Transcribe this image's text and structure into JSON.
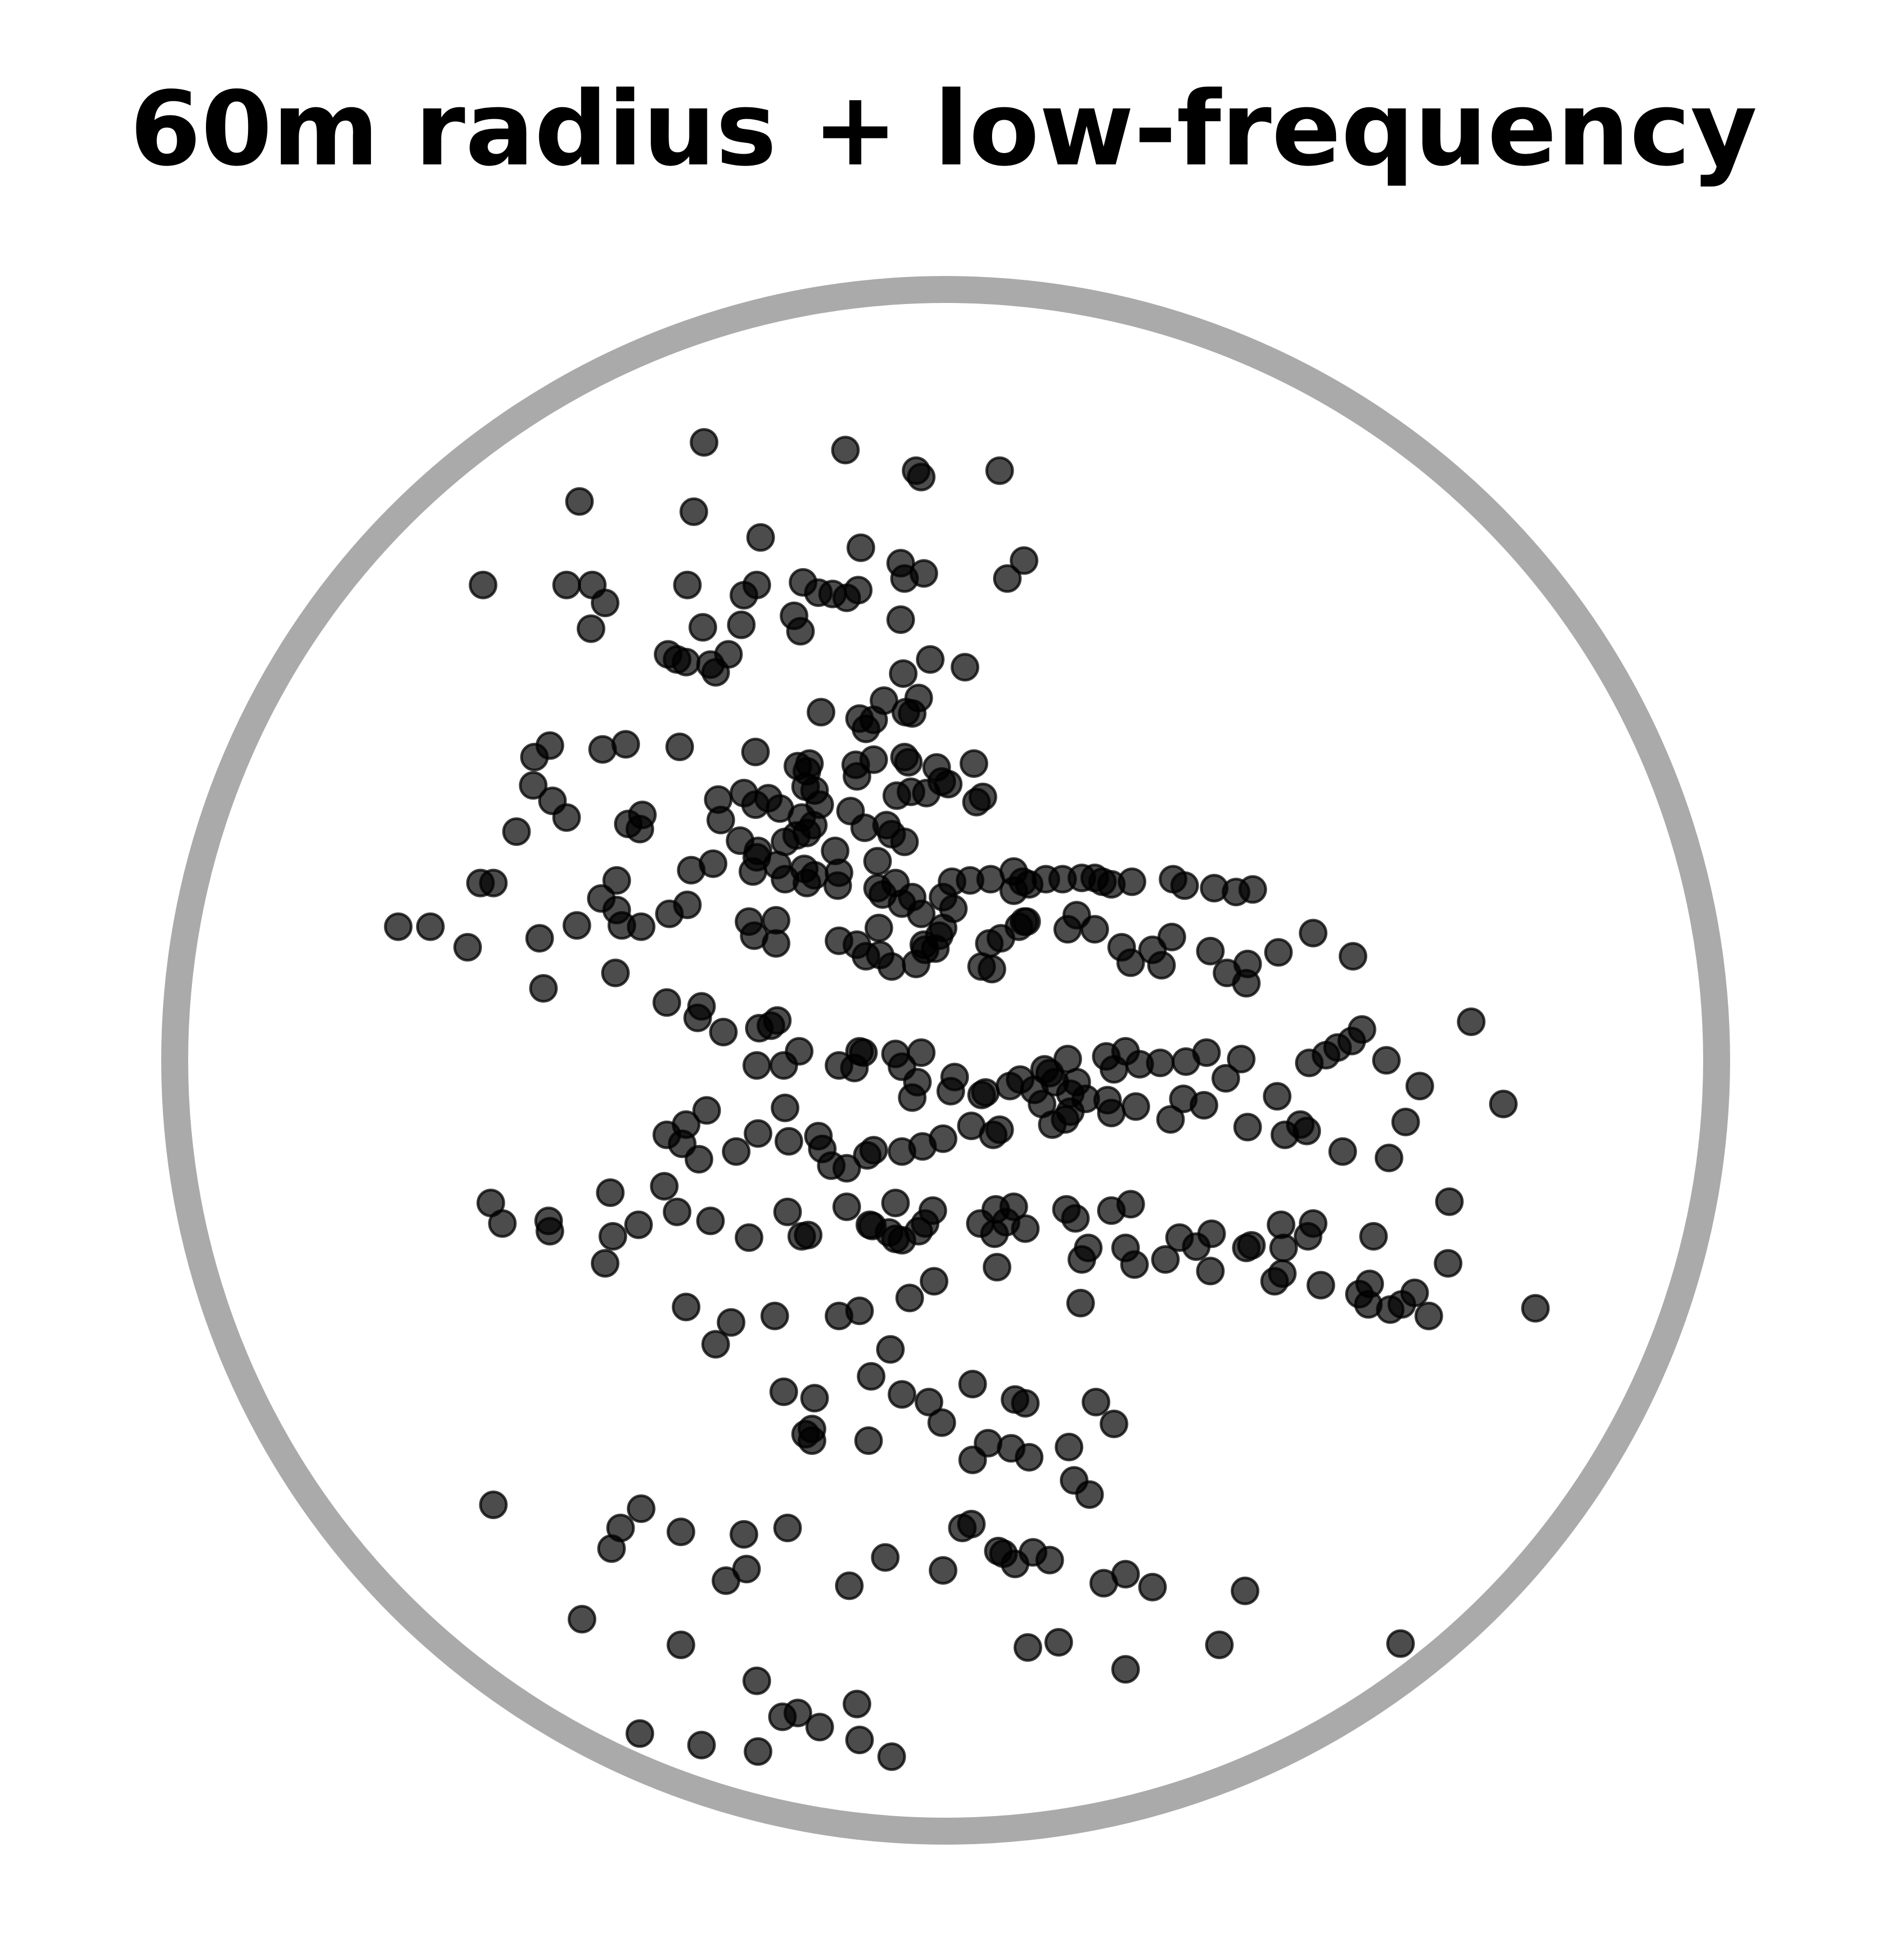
{
  "chart_data": {
    "type": "scatter",
    "title": "60m radius + low-frequency",
    "xlabel": "",
    "ylabel": "",
    "grid": false,
    "legend": "none",
    "unit": "m",
    "radius": 60,
    "xlim": [
      -60,
      60
    ],
    "ylim": [
      -60,
      60
    ],
    "colors": {
      "points": "#000000",
      "boundary": "#aaaaaa",
      "background": "#ffffff"
    },
    "points": [
      [
        -18.8,
        48.1
      ],
      [
        -7.8,
        47.5
      ],
      [
        -2.3,
        45.9
      ],
      [
        -1.9,
        45.4
      ],
      [
        4.2,
        45.9
      ],
      [
        -28.5,
        43.5
      ],
      [
        -19.6,
        42.7
      ],
      [
        -14.4,
        40.7
      ],
      [
        -6.6,
        39.9
      ],
      [
        6.1,
        38.9
      ],
      [
        -3.5,
        38.7
      ],
      [
        -3.2,
        37.5
      ],
      [
        -1.7,
        37.9
      ],
      [
        4.8,
        37.5
      ],
      [
        -29.5,
        37.0
      ],
      [
        -27.5,
        37.0
      ],
      [
        -20.1,
        37.0
      ],
      [
        -9.9,
        36.4
      ],
      [
        -14.7,
        37.0
      ],
      [
        -11.1,
        37.2
      ],
      [
        -8.8,
        36.3
      ],
      [
        -36.0,
        37.0
      ],
      [
        -26.5,
        35.6
      ],
      [
        -15.7,
        36.2
      ],
      [
        -7.7,
        36.0
      ],
      [
        -6.8,
        36.6
      ],
      [
        -11.8,
        34.6
      ],
      [
        -3.5,
        34.3
      ],
      [
        -15.9,
        33.9
      ],
      [
        -18.9,
        33.7
      ],
      [
        -27.6,
        33.6
      ],
      [
        -11.3,
        33.4
      ],
      [
        -21.6,
        31.6
      ],
      [
        -20.9,
        31.2
      ],
      [
        -20.2,
        31.0
      ],
      [
        -18.3,
        30.8
      ],
      [
        -16.9,
        31.6
      ],
      [
        -17.9,
        30.2
      ],
      [
        -1.2,
        31.2
      ],
      [
        -3.3,
        30.1
      ],
      [
        1.5,
        30.6
      ],
      [
        -4.8,
        28.0
      ],
      [
        -2.1,
        28.2
      ],
      [
        -3.1,
        27.1
      ],
      [
        -9.7,
        27.1
      ],
      [
        -2.6,
        27.0
      ],
      [
        -6.7,
        26.6
      ],
      [
        -5.6,
        26.5
      ],
      [
        -6.2,
        25.8
      ],
      [
        -30.8,
        24.5
      ],
      [
        -32.0,
        23.6
      ],
      [
        -24.9,
        24.6
      ],
      [
        -26.7,
        24.2
      ],
      [
        -20.7,
        24.4
      ],
      [
        -14.8,
        24.0
      ],
      [
        -10.6,
        23.1
      ],
      [
        -11.5,
        22.9
      ],
      [
        -10.8,
        22.5
      ],
      [
        -10.9,
        21.3
      ],
      [
        -10.2,
        21.0
      ],
      [
        -7.0,
        23.0
      ],
      [
        -5.6,
        23.4
      ],
      [
        -6.9,
        22.1
      ],
      [
        -3.2,
        23.6
      ],
      [
        -2.9,
        23.2
      ],
      [
        -0.7,
        22.8
      ],
      [
        2.2,
        23.1
      ],
      [
        -32.1,
        21.4
      ],
      [
        -30.6,
        20.2
      ],
      [
        -17.7,
        20.3
      ],
      [
        -15.7,
        20.8
      ],
      [
        -14.8,
        19.9
      ],
      [
        -13.8,
        20.4
      ],
      [
        -12.9,
        19.6
      ],
      [
        -9.8,
        19.9
      ],
      [
        -7.4,
        19.4
      ],
      [
        -3.8,
        20.6
      ],
      [
        -2.7,
        20.9
      ],
      [
        -1.5,
        20.8
      ],
      [
        -0.3,
        21.7
      ],
      [
        0.2,
        21.5
      ],
      [
        2.4,
        20.1
      ],
      [
        2.9,
        20.5
      ],
      [
        -29.5,
        18.9
      ],
      [
        -33.4,
        17.8
      ],
      [
        -23.6,
        19.1
      ],
      [
        -24.7,
        18.4
      ],
      [
        -23.8,
        18.0
      ],
      [
        -11.2,
        18.9
      ],
      [
        -10.3,
        18.3
      ],
      [
        -17.5,
        18.7
      ],
      [
        -10.8,
        17.7
      ],
      [
        -6.3,
        18.1
      ],
      [
        -4.6,
        18.3
      ],
      [
        -4.2,
        17.6
      ],
      [
        -3.2,
        17.0
      ],
      [
        -5.3,
        15.5
      ],
      [
        -8.6,
        16.3
      ],
      [
        -11.6,
        17.5
      ],
      [
        -12.5,
        17.0
      ],
      [
        -14.6,
        16.3
      ],
      [
        -16.0,
        17.1
      ],
      [
        -15.0,
        14.7
      ],
      [
        -19.8,
        14.8
      ],
      [
        -25.6,
        14.0
      ],
      [
        -35.2,
        13.8
      ],
      [
        -36.2,
        13.8
      ],
      [
        -18.1,
        15.3
      ],
      [
        -14.7,
        15.8
      ],
      [
        -13.1,
        15.2
      ],
      [
        -12.5,
        14.1
      ],
      [
        -11.0,
        14.9
      ],
      [
        -10.2,
        14.4
      ],
      [
        -10.8,
        13.8
      ],
      [
        -8.4,
        13.6
      ],
      [
        -8.3,
        14.6
      ],
      [
        -5.3,
        13.4
      ],
      [
        -3.9,
        13.8
      ],
      [
        -4.9,
        12.9
      ],
      [
        -3.4,
        12.2
      ],
      [
        -2.6,
        12.7
      ],
      [
        -0.2,
        12.7
      ],
      [
        0.5,
        13.9
      ],
      [
        1.9,
        14.0
      ],
      [
        3.5,
        14.1
      ],
      [
        5.3,
        14.7
      ],
      [
        6.0,
        13.9
      ],
      [
        5.3,
        13.2
      ],
      [
        6.5,
        13.7
      ],
      [
        7.8,
        14.1
      ],
      [
        9.1,
        14.1
      ],
      [
        10.6,
        14.2
      ],
      [
        11.6,
        14.2
      ],
      [
        12.2,
        13.9
      ],
      [
        12.9,
        13.7
      ],
      [
        14.5,
        13.9
      ],
      [
        17.7,
        14.1
      ],
      [
        18.6,
        13.6
      ],
      [
        20.9,
        13.4
      ],
      [
        22.6,
        13.1
      ],
      [
        23.9,
        13.3
      ],
      [
        -26.8,
        12.6
      ],
      [
        -25.6,
        11.7
      ],
      [
        -28.7,
        10.5
      ],
      [
        -42.6,
        10.4
      ],
      [
        -40.1,
        10.4
      ],
      [
        -37.2,
        8.8
      ],
      [
        -31.6,
        9.5
      ],
      [
        -25.2,
        10.5
      ],
      [
        -23.7,
        10.4
      ],
      [
        -21.5,
        11.4
      ],
      [
        -20.1,
        12.1
      ],
      [
        -15.3,
        10.8
      ],
      [
        -13.2,
        10.9
      ],
      [
        -14.9,
        9.7
      ],
      [
        -13.2,
        9.1
      ],
      [
        -8.3,
        9.3
      ],
      [
        -6.9,
        9.0
      ],
      [
        -5.2,
        10.3
      ],
      [
        0.6,
        11.8
      ],
      [
        -1.9,
        11.4
      ],
      [
        -0.2,
        10.3
      ],
      [
        -1.7,
        9.0
      ],
      [
        -5.1,
        8.2
      ],
      [
        -6.2,
        8.1
      ],
      [
        -4.2,
        7.3
      ],
      [
        -2.3,
        7.5
      ],
      [
        -1.6,
        8.6
      ],
      [
        -0.8,
        8.7
      ],
      [
        -0.5,
        9.7
      ],
      [
        2.8,
        7.3
      ],
      [
        3.6,
        7.1
      ],
      [
        3.4,
        9.1
      ],
      [
        4.3,
        9.5
      ],
      [
        5.7,
        10.4
      ],
      [
        6.3,
        10.8
      ],
      [
        6.1,
        10.8
      ],
      [
        9.5,
        10.2
      ],
      [
        10.2,
        11.3
      ],
      [
        11.6,
        10.2
      ],
      [
        13.7,
        8.8
      ],
      [
        14.4,
        7.6
      ],
      [
        16.8,
        7.4
      ],
      [
        16.1,
        8.6
      ],
      [
        17.6,
        9.6
      ],
      [
        20.6,
        8.5
      ],
      [
        21.9,
        6.8
      ],
      [
        23.5,
        7.5
      ],
      [
        23.4,
        6.0
      ],
      [
        25.9,
        8.4
      ],
      [
        28.6,
        9.9
      ],
      [
        31.7,
        8.1
      ],
      [
        -31.3,
        5.6
      ],
      [
        -25.7,
        6.8
      ],
      [
        -21.7,
        4.5
      ],
      [
        -19.0,
        4.2
      ],
      [
        -19.3,
        3.3
      ],
      [
        -17.3,
        2.2
      ],
      [
        -14.5,
        2.5
      ],
      [
        -13.1,
        3.1
      ],
      [
        -13.6,
        2.7
      ],
      [
        -14.7,
        -0.4
      ],
      [
        -12.6,
        -0.4
      ],
      [
        -11.4,
        0.7
      ],
      [
        -8.3,
        -0.4
      ],
      [
        -6.7,
        0.7
      ],
      [
        -6.4,
        0.6
      ],
      [
        -3.9,
        0.5
      ],
      [
        -1.9,
        0.6
      ],
      [
        -3.4,
        -0.5
      ],
      [
        -7.1,
        -0.6
      ],
      [
        -2.2,
        -1.7
      ],
      [
        -2.6,
        -2.9
      ],
      [
        0.7,
        -1.3
      ],
      [
        0.4,
        -2.4
      ],
      [
        2.8,
        -2.7
      ],
      [
        3.1,
        -2.5
      ],
      [
        5.0,
        -2.0
      ],
      [
        5.8,
        -1.5
      ],
      [
        6.9,
        -2.3
      ],
      [
        7.7,
        -0.7
      ],
      [
        8.1,
        -1.0
      ],
      [
        9.5,
        0.1
      ],
      [
        8.5,
        -1.7
      ],
      [
        10.2,
        -1.7
      ],
      [
        9.7,
        -2.6
      ],
      [
        12.6,
        -3.1
      ],
      [
        12.5,
        0.3
      ],
      [
        13.1,
        -0.7
      ],
      [
        14.0,
        0.7
      ],
      [
        15.1,
        -0.3
      ],
      [
        16.7,
        -0.2
      ],
      [
        18.7,
        -0.1
      ],
      [
        20.3,
        0.6
      ],
      [
        21.8,
        -1.4
      ],
      [
        23.0,
        0.1
      ],
      [
        25.8,
        -2.8
      ],
      [
        28.3,
        -0.2
      ],
      [
        29.6,
        0.4
      ],
      [
        30.5,
        1.0
      ],
      [
        31.6,
        1.5
      ],
      [
        32.4,
        2.4
      ],
      [
        34.3,
        0.0
      ],
      [
        36.9,
        -2.0
      ],
      [
        40.9,
        3.0
      ],
      [
        43.4,
        -3.4
      ],
      [
        -21.7,
        -5.8
      ],
      [
        -20.2,
        -5.0
      ],
      [
        -18.6,
        -3.9
      ],
      [
        -20.5,
        -6.5
      ],
      [
        -19.2,
        -7.7
      ],
      [
        -16.3,
        -7.1
      ],
      [
        -12.5,
        -3.7
      ],
      [
        -14.6,
        -5.7
      ],
      [
        -12.2,
        -6.3
      ],
      [
        -9.9,
        -5.9
      ],
      [
        -9.6,
        -6.9
      ],
      [
        -8.9,
        -8.2
      ],
      [
        -7.7,
        -8.4
      ],
      [
        -6.1,
        -7.4
      ],
      [
        -5.6,
        -7.0
      ],
      [
        -3.4,
        -7.1
      ],
      [
        -1.8,
        -6.7
      ],
      [
        -0.2,
        -6.1
      ],
      [
        2.0,
        -5.1
      ],
      [
        3.7,
        -5.8
      ],
      [
        4.2,
        -5.4
      ],
      [
        7.5,
        -3.4
      ],
      [
        8.3,
        -5.0
      ],
      [
        9.3,
        -4.6
      ],
      [
        9.7,
        -4.0
      ],
      [
        10.9,
        -3.0
      ],
      [
        12.9,
        -4.1
      ],
      [
        14.8,
        -3.6
      ],
      [
        17.5,
        -4.6
      ],
      [
        18.5,
        -3.0
      ],
      [
        20.1,
        -3.5
      ],
      [
        23.5,
        -5.2
      ],
      [
        26.4,
        -5.8
      ],
      [
        27.6,
        -5.0
      ],
      [
        28.1,
        -5.5
      ],
      [
        30.9,
        -7.1
      ],
      [
        34.5,
        -7.6
      ],
      [
        35.8,
        -4.8
      ],
      [
        -26.1,
        -10.3
      ],
      [
        -35.4,
        -11.1
      ],
      [
        -34.5,
        -12.7
      ],
      [
        -30.9,
        -12.5
      ],
      [
        -30.8,
        -13.3
      ],
      [
        -25.9,
        -13.7
      ],
      [
        -23.9,
        -12.8
      ],
      [
        -21.9,
        -9.8
      ],
      [
        -20.9,
        -11.8
      ],
      [
        -18.3,
        -12.5
      ],
      [
        -15.3,
        -13.8
      ],
      [
        -12.3,
        -11.8
      ],
      [
        -11.2,
        -13.7
      ],
      [
        -10.7,
        -13.6
      ],
      [
        -7.7,
        -11.4
      ],
      [
        -5.7,
        -12.9
      ],
      [
        -5.9,
        -12.8
      ],
      [
        -3.9,
        -11.1
      ],
      [
        -4.4,
        -13.4
      ],
      [
        -3.9,
        -13.9
      ],
      [
        -2.1,
        -13.3
      ],
      [
        -1.6,
        -12.7
      ],
      [
        -1.0,
        -11.7
      ],
      [
        2.7,
        -12.7
      ],
      [
        3.9,
        -11.6
      ],
      [
        4.7,
        -12.6
      ],
      [
        3.8,
        -13.5
      ],
      [
        5.3,
        -11.4
      ],
      [
        6.2,
        -13.1
      ],
      [
        10.1,
        -12.3
      ],
      [
        9.4,
        -11.6
      ],
      [
        11.1,
        -14.6
      ],
      [
        14.0,
        -14.6
      ],
      [
        12.9,
        -11.7
      ],
      [
        14.4,
        -11.2
      ],
      [
        18.2,
        -13.8
      ],
      [
        20.7,
        -13.5
      ],
      [
        23.4,
        -14.6
      ],
      [
        23.8,
        -14.4
      ],
      [
        26.1,
        -12.8
      ],
      [
        26.3,
        -14.6
      ],
      [
        28.2,
        -13.7
      ],
      [
        28.6,
        -12.7
      ],
      [
        33.3,
        -13.7
      ],
      [
        39.2,
        -11.0
      ],
      [
        39.1,
        -15.8
      ],
      [
        -26.5,
        -15.8
      ],
      [
        -20.2,
        -19.2
      ],
      [
        -16.7,
        -20.4
      ],
      [
        -13.3,
        -19.9
      ],
      [
        -8.3,
        -19.9
      ],
      [
        -6.7,
        -19.5
      ],
      [
        -2.8,
        -18.5
      ],
      [
        -0.9,
        -17.2
      ],
      [
        -3.4,
        -14.0
      ],
      [
        4.0,
        -16.1
      ],
      [
        10.5,
        -18.9
      ],
      [
        10.6,
        -15.5
      ],
      [
        14.7,
        -15.9
      ],
      [
        17.1,
        -15.5
      ],
      [
        19.5,
        -14.5
      ],
      [
        20.6,
        -16.4
      ],
      [
        25.6,
        -17.2
      ],
      [
        26.2,
        -16.6
      ],
      [
        29.2,
        -17.5
      ],
      [
        32.2,
        -18.2
      ],
      [
        33.0,
        -17.4
      ],
      [
        32.9,
        -19.0
      ],
      [
        34.6,
        -19.4
      ],
      [
        35.5,
        -19.0
      ],
      [
        36.5,
        -18.1
      ],
      [
        37.6,
        -19.9
      ],
      [
        45.9,
        -19.3
      ],
      [
        -17.9,
        -22.1
      ],
      [
        -4.3,
        -22.5
      ],
      [
        -5.8,
        -24.6
      ],
      [
        -12.6,
        -25.8
      ],
      [
        -10.2,
        -26.3
      ],
      [
        -3.4,
        -26.0
      ],
      [
        -1.3,
        -26.6
      ],
      [
        2.1,
        -25.2
      ],
      [
        5.4,
        -26.4
      ],
      [
        6.2,
        -26.7
      ],
      [
        11.7,
        -26.6
      ],
      [
        13.1,
        -28.3
      ],
      [
        -10.4,
        -28.7
      ],
      [
        -10.9,
        -29.1
      ],
      [
        -10.4,
        -29.6
      ],
      [
        -6.0,
        -29.6
      ],
      [
        -0.3,
        -28.2
      ],
      [
        3.3,
        -29.8
      ],
      [
        6.5,
        -30.9
      ],
      [
        5.1,
        -30.2
      ],
      [
        2.1,
        -31.1
      ],
      [
        9.6,
        -30.1
      ],
      [
        10.0,
        -32.7
      ],
      [
        11.2,
        -33.8
      ],
      [
        -35.2,
        -34.6
      ],
      [
        -25.3,
        -36.4
      ],
      [
        -23.7,
        -34.9
      ],
      [
        -26.0,
        -38.0
      ],
      [
        -20.6,
        -36.7
      ],
      [
        -15.7,
        -36.9
      ],
      [
        -15.5,
        -39.6
      ],
      [
        -17.1,
        -40.5
      ],
      [
        -12.3,
        -36.4
      ],
      [
        -7.5,
        -40.9
      ],
      [
        -4.7,
        -38.7
      ],
      [
        1.3,
        -36.4
      ],
      [
        2.0,
        -36.1
      ],
      [
        -0.2,
        -39.7
      ],
      [
        4.5,
        -38.4
      ],
      [
        4.1,
        -38.2
      ],
      [
        5.4,
        -39.2
      ],
      [
        6.8,
        -38.3
      ],
      [
        8.1,
        -38.9
      ],
      [
        12.3,
        -40.7
      ],
      [
        14.0,
        -40.0
      ],
      [
        16.1,
        -41.0
      ],
      [
        23.3,
        -41.3
      ],
      [
        -28.3,
        -43.5
      ],
      [
        -20.6,
        -45.5
      ],
      [
        -14.7,
        -48.3
      ],
      [
        -6.9,
        -50.1
      ],
      [
        -6.7,
        -52.9
      ],
      [
        -11.5,
        -50.8
      ],
      [
        -12.7,
        -51.1
      ],
      [
        -9.8,
        -51.9
      ],
      [
        -4.2,
        -54.2
      ],
      [
        6.4,
        -45.7
      ],
      [
        8.8,
        -45.3
      ],
      [
        14.0,
        -47.4
      ],
      [
        21.3,
        -45.5
      ],
      [
        35.4,
        -45.4
      ],
      [
        -19.0,
        -53.3
      ],
      [
        -23.8,
        -52.4
      ],
      [
        -14.6,
        -53.8
      ]
    ]
  }
}
